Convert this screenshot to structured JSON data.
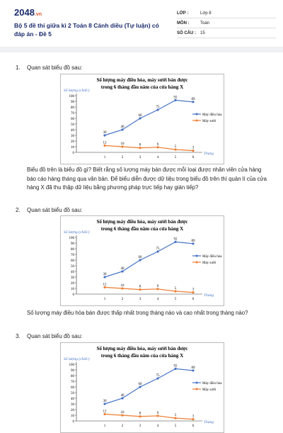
{
  "header": {
    "logo": "2048",
    "logo_suffix": ".vn",
    "title": "Bộ 5 đề thi giữa kì 2 Toán 8 Cánh diều (Tự luận) có đáp án - Đề 5",
    "info": [
      {
        "label": "LỚP :",
        "value": "Lớp 8"
      },
      {
        "label": "MÔN :",
        "value": "Toán"
      },
      {
        "label": "SỐ CÂU :",
        "value": "15"
      }
    ]
  },
  "questions": [
    {
      "number": "1.",
      "prompt": "Quan sát biểu đồ sau:",
      "chart": {
        "type": "line",
        "title": [
          "Số lượng máy điều hòa, máy sưởi bán được",
          "trong 6 tháng đầu năm của cửa hàng X"
        ],
        "y_label": "Số lượng (chiếc)",
        "x_label": "Tháng",
        "categories": [
          "1",
          "2",
          "3",
          "4",
          "5",
          "6"
        ],
        "series": [
          {
            "name": "Máy điều hòa",
            "color": "#4472c4",
            "values": [
              30,
              40,
              60,
              75,
              92,
              89
            ]
          },
          {
            "name": "Máy sưởi",
            "color": "#ed7d31",
            "values": [
              12,
              10,
              8,
              9,
              5,
              3
            ]
          }
        ],
        "ylim": [
          0,
          100
        ],
        "yticks": [
          0,
          10,
          20,
          30,
          40,
          50,
          60,
          70,
          80,
          90,
          100
        ],
        "legend": "right"
      },
      "text": "Biểu đồ trên là biểu đồ gì? Biết rằng số lượng máy bán được mỗi loại được nhân viên cửa hàng báo cáo hàng tháng qua văn bản. Để biểu diễn được dữ liệu trong biểu đồ trên thì quản lí của cửa hàng X đã thu thập dữ liệu bằng phương pháp trực tiếp hay gián tiếp?"
    },
    {
      "number": "2.",
      "prompt": "Quan sát biểu đồ sau:",
      "chart": {
        "type": "line",
        "title": [
          "Số lượng máy điều hòa, máy sưởi bán được",
          "trong 6 tháng đầu năm của cửa hàng X"
        ],
        "y_label": "Số lượng (chiếc)",
        "x_label": "Tháng",
        "categories": [
          "1",
          "2",
          "3",
          "4",
          "5",
          "6"
        ],
        "series": [
          {
            "name": "Máy điều hòa",
            "color": "#4472c4",
            "values": [
              30,
              40,
              60,
              75,
              92,
              89
            ]
          },
          {
            "name": "Máy sưởi",
            "color": "#ed7d31",
            "values": [
              12,
              10,
              8,
              9,
              5,
              3
            ]
          }
        ],
        "ylim": [
          0,
          100
        ],
        "yticks": [
          0,
          10,
          20,
          30,
          40,
          50,
          60,
          70,
          80,
          90,
          100
        ],
        "legend": "right"
      },
      "text": "Số lượng máy điều hòa bán được thấp nhất trong tháng nào và cao nhất trong tháng nào?"
    },
    {
      "number": "3.",
      "prompt": "Quan sát biểu đồ sau:",
      "chart": {
        "type": "line",
        "title": [
          "Số lượng máy điều hòa, máy sưởi bán được",
          "trong 6 tháng đầu năm của cửa hàng X"
        ],
        "y_label": "Số lượng (chiếc)",
        "x_label": "Tháng",
        "categories": [
          "1",
          "2",
          "3",
          "4",
          "5",
          "6"
        ],
        "series": [
          {
            "name": "Máy điều hòa",
            "color": "#4472c4",
            "values": [
              30,
              40,
              60,
              75,
              92,
              89
            ]
          },
          {
            "name": "Máy sưởi",
            "color": "#ed7d31",
            "values": [
              12,
              10,
              8,
              9,
              5,
              3
            ]
          }
        ],
        "ylim": [
          0,
          100
        ],
        "yticks": [
          0,
          10,
          20,
          30,
          40,
          50,
          60,
          70,
          80,
          90,
          100
        ],
        "legend": "right"
      }
    }
  ]
}
